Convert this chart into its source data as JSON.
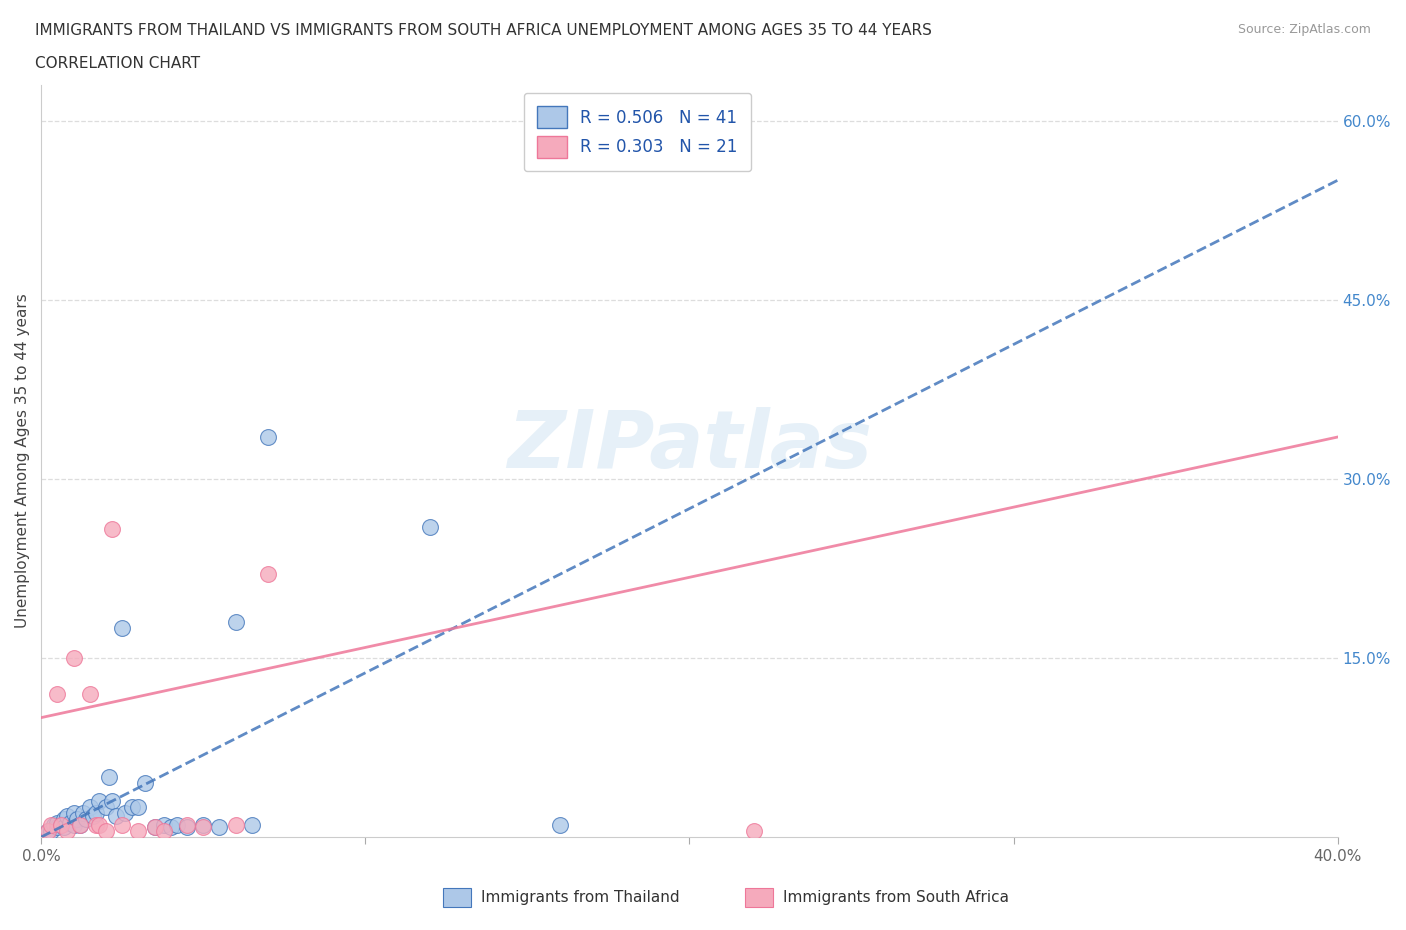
{
  "title_line1": "IMMIGRANTS FROM THAILAND VS IMMIGRANTS FROM SOUTH AFRICA UNEMPLOYMENT AMONG AGES 35 TO 44 YEARS",
  "title_line2": "CORRELATION CHART",
  "source": "Source: ZipAtlas.com",
  "ylabel": "Unemployment Among Ages 35 to 44 years",
  "xlim": [
    0.0,
    0.4
  ],
  "ylim": [
    0.0,
    0.63
  ],
  "x_ticks": [
    0.0,
    0.1,
    0.2,
    0.3,
    0.4
  ],
  "x_tick_labels": [
    "0.0%",
    "",
    "",
    "",
    "40.0%"
  ],
  "y_ticks_right": [
    0.15,
    0.3,
    0.45,
    0.6
  ],
  "y_tick_labels_right": [
    "15.0%",
    "30.0%",
    "45.0%",
    "60.0%"
  ],
  "r_thailand": 0.506,
  "n_thailand": 41,
  "r_south_africa": 0.303,
  "n_south_africa": 21,
  "thailand_color": "#adc8e8",
  "south_africa_color": "#f5aabc",
  "trend_thailand_color": "#4477bb",
  "trend_south_africa_color": "#ee7799",
  "watermark": "ZIPatlas",
  "thailand_x": [
    0.002,
    0.003,
    0.004,
    0.005,
    0.005,
    0.006,
    0.007,
    0.007,
    0.008,
    0.009,
    0.01,
    0.01,
    0.011,
    0.012,
    0.013,
    0.014,
    0.015,
    0.016,
    0.017,
    0.018,
    0.02,
    0.021,
    0.022,
    0.023,
    0.025,
    0.026,
    0.028,
    0.03,
    0.032,
    0.035,
    0.038,
    0.04,
    0.042,
    0.045,
    0.05,
    0.055,
    0.06,
    0.065,
    0.07,
    0.12,
    0.16
  ],
  "thailand_y": [
    0.005,
    0.005,
    0.01,
    0.008,
    0.012,
    0.01,
    0.015,
    0.008,
    0.018,
    0.012,
    0.01,
    0.02,
    0.015,
    0.01,
    0.02,
    0.015,
    0.025,
    0.018,
    0.02,
    0.03,
    0.025,
    0.05,
    0.03,
    0.018,
    0.175,
    0.02,
    0.025,
    0.025,
    0.045,
    0.008,
    0.01,
    0.008,
    0.01,
    0.008,
    0.01,
    0.008,
    0.18,
    0.01,
    0.335,
    0.26,
    0.01
  ],
  "south_africa_x": [
    0.002,
    0.003,
    0.005,
    0.006,
    0.008,
    0.01,
    0.012,
    0.015,
    0.017,
    0.018,
    0.02,
    0.022,
    0.025,
    0.03,
    0.035,
    0.038,
    0.045,
    0.05,
    0.06,
    0.07,
    0.22
  ],
  "south_africa_y": [
    0.005,
    0.01,
    0.12,
    0.01,
    0.005,
    0.15,
    0.01,
    0.12,
    0.01,
    0.01,
    0.005,
    0.258,
    0.01,
    0.005,
    0.008,
    0.005,
    0.01,
    0.008,
    0.01,
    0.22,
    0.005
  ],
  "trend_th_x0": 0.0,
  "trend_th_y0": 0.0,
  "trend_th_x1": 0.4,
  "trend_th_y1": 0.55,
  "trend_sa_x0": 0.0,
  "trend_sa_y0": 0.1,
  "trend_sa_x1": 0.4,
  "trend_sa_y1": 0.335
}
